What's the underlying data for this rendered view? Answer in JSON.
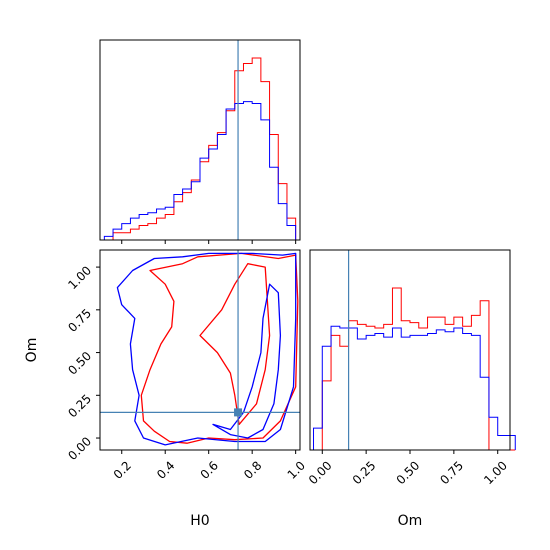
{
  "chart_data": {
    "type": "corner",
    "parameters": [
      "H0",
      "Om"
    ],
    "truths": {
      "H0": 0.735,
      "Om": 0.15
    },
    "colors": {
      "run1": "#ff0000",
      "run2": "#0000ff",
      "truth": "#4682b4"
    },
    "h0_hist": {
      "type": "histogram",
      "xlim": [
        0.1,
        1.02
      ],
      "bin_edges": [
        0.12,
        0.16,
        0.2,
        0.24,
        0.28,
        0.32,
        0.36,
        0.4,
        0.44,
        0.48,
        0.52,
        0.56,
        0.6,
        0.64,
        0.68,
        0.72,
        0.76,
        0.8,
        0.84,
        0.88,
        0.92,
        0.96,
        1.0
      ],
      "series": [
        {
          "color_key": "run1",
          "values": [
            0.0,
            0.04,
            0.04,
            0.06,
            0.08,
            0.09,
            0.12,
            0.14,
            0.21,
            0.26,
            0.33,
            0.43,
            0.52,
            0.59,
            0.71,
            0.93,
            0.97,
            1.0,
            0.87,
            0.58,
            0.31,
            0.12
          ]
        },
        {
          "color_key": "run2",
          "values": [
            0.02,
            0.06,
            0.09,
            0.12,
            0.14,
            0.15,
            0.17,
            0.18,
            0.25,
            0.28,
            0.32,
            0.45,
            0.5,
            0.58,
            0.72,
            0.75,
            0.76,
            0.75,
            0.66,
            0.4,
            0.2,
            0.08
          ]
        }
      ]
    },
    "om_hist": {
      "type": "histogram",
      "xlim": [
        -0.07,
        1.07
      ],
      "xticks": [
        "0.00",
        "0.25",
        "0.50",
        "0.75",
        "1.00"
      ],
      "xlabel": "Om",
      "bin_edges": [
        -0.05,
        0.0,
        0.05,
        0.1,
        0.15,
        0.2,
        0.25,
        0.3,
        0.35,
        0.4,
        0.45,
        0.5,
        0.55,
        0.6,
        0.65,
        0.7,
        0.75,
        0.8,
        0.85,
        0.9,
        0.95,
        1.0,
        1.05,
        1.1
      ],
      "series": [
        {
          "color_key": "run1",
          "values": [
            0.0,
            0.38,
            0.63,
            0.57,
            0.71,
            0.69,
            0.68,
            0.67,
            0.69,
            0.89,
            0.71,
            0.7,
            0.67,
            0.73,
            0.73,
            0.69,
            0.73,
            0.68,
            0.74,
            0.82,
            0.0,
            0.0,
            0.0
          ]
        },
        {
          "color_key": "run2",
          "values": [
            0.12,
            0.57,
            0.68,
            0.67,
            0.67,
            0.61,
            0.63,
            0.64,
            0.62,
            0.67,
            0.62,
            0.63,
            0.63,
            0.64,
            0.66,
            0.65,
            0.67,
            0.64,
            0.63,
            0.4,
            0.18,
            0.08,
            0.08
          ]
        }
      ]
    },
    "joint": {
      "type": "contour",
      "xlim": [
        0.1,
        1.02
      ],
      "ylim": [
        -0.07,
        1.1
      ],
      "xticks": [
        "0.2",
        "0.4",
        "0.6",
        "0.8",
        "1.0"
      ],
      "yticks": [
        "0.00",
        "0.25",
        "0.50",
        "0.75",
        "1.00"
      ],
      "xlabel": "H0",
      "ylabel": "Om",
      "contours": [
        {
          "color_key": "run1",
          "points": [
            [
              0.33,
              0.98
            ],
            [
              0.48,
              1.02
            ],
            [
              0.55,
              1.06
            ],
            [
              0.75,
              1.08
            ],
            [
              0.92,
              1.05
            ],
            [
              1.0,
              1.07
            ],
            [
              1.01,
              0.8
            ],
            [
              1.0,
              0.3
            ],
            [
              0.93,
              0.1
            ],
            [
              0.85,
              0.0
            ],
            [
              0.72,
              -0.01
            ],
            [
              0.6,
              0.0
            ],
            [
              0.5,
              -0.03
            ],
            [
              0.42,
              -0.02
            ],
            [
              0.35,
              0.04
            ],
            [
              0.3,
              0.1
            ],
            [
              0.29,
              0.25
            ],
            [
              0.33,
              0.4
            ],
            [
              0.38,
              0.55
            ],
            [
              0.43,
              0.65
            ],
            [
              0.44,
              0.8
            ],
            [
              0.4,
              0.9
            ]
          ]
        },
        {
          "color_key": "run1",
          "points": [
            [
              0.56,
              0.6
            ],
            [
              0.64,
              0.5
            ],
            [
              0.7,
              0.38
            ],
            [
              0.72,
              0.25
            ],
            [
              0.74,
              0.08
            ],
            [
              0.82,
              0.2
            ],
            [
              0.86,
              0.4
            ],
            [
              0.88,
              0.6
            ],
            [
              0.87,
              0.8
            ],
            [
              0.86,
              1.0
            ],
            [
              0.78,
              1.02
            ],
            [
              0.72,
              0.9
            ],
            [
              0.66,
              0.75
            ]
          ]
        },
        {
          "color_key": "run2",
          "points": [
            [
              0.18,
              0.88
            ],
            [
              0.25,
              0.98
            ],
            [
              0.35,
              1.05
            ],
            [
              0.48,
              1.06
            ],
            [
              0.6,
              1.08
            ],
            [
              0.8,
              1.08
            ],
            [
              0.94,
              1.07
            ],
            [
              1.0,
              1.08
            ],
            [
              1.0,
              0.7
            ],
            [
              0.99,
              0.3
            ],
            [
              0.93,
              0.05
            ],
            [
              0.86,
              -0.02
            ],
            [
              0.72,
              -0.02
            ],
            [
              0.55,
              0.0
            ],
            [
              0.4,
              -0.04
            ],
            [
              0.3,
              0.0
            ],
            [
              0.26,
              0.1
            ],
            [
              0.28,
              0.25
            ],
            [
              0.25,
              0.4
            ],
            [
              0.24,
              0.55
            ],
            [
              0.26,
              0.7
            ],
            [
              0.2,
              0.78
            ]
          ]
        },
        {
          "color_key": "run2",
          "points": [
            [
              0.62,
              0.08
            ],
            [
              0.7,
              0.05
            ],
            [
              0.76,
              0.15
            ],
            [
              0.8,
              0.3
            ],
            [
              0.84,
              0.5
            ],
            [
              0.85,
              0.7
            ],
            [
              0.88,
              0.9
            ],
            [
              0.92,
              0.85
            ],
            [
              0.93,
              0.6
            ],
            [
              0.92,
              0.4
            ],
            [
              0.9,
              0.2
            ],
            [
              0.85,
              0.05
            ],
            [
              0.78,
              0.0
            ],
            [
              0.7,
              0.02
            ]
          ]
        }
      ]
    }
  }
}
